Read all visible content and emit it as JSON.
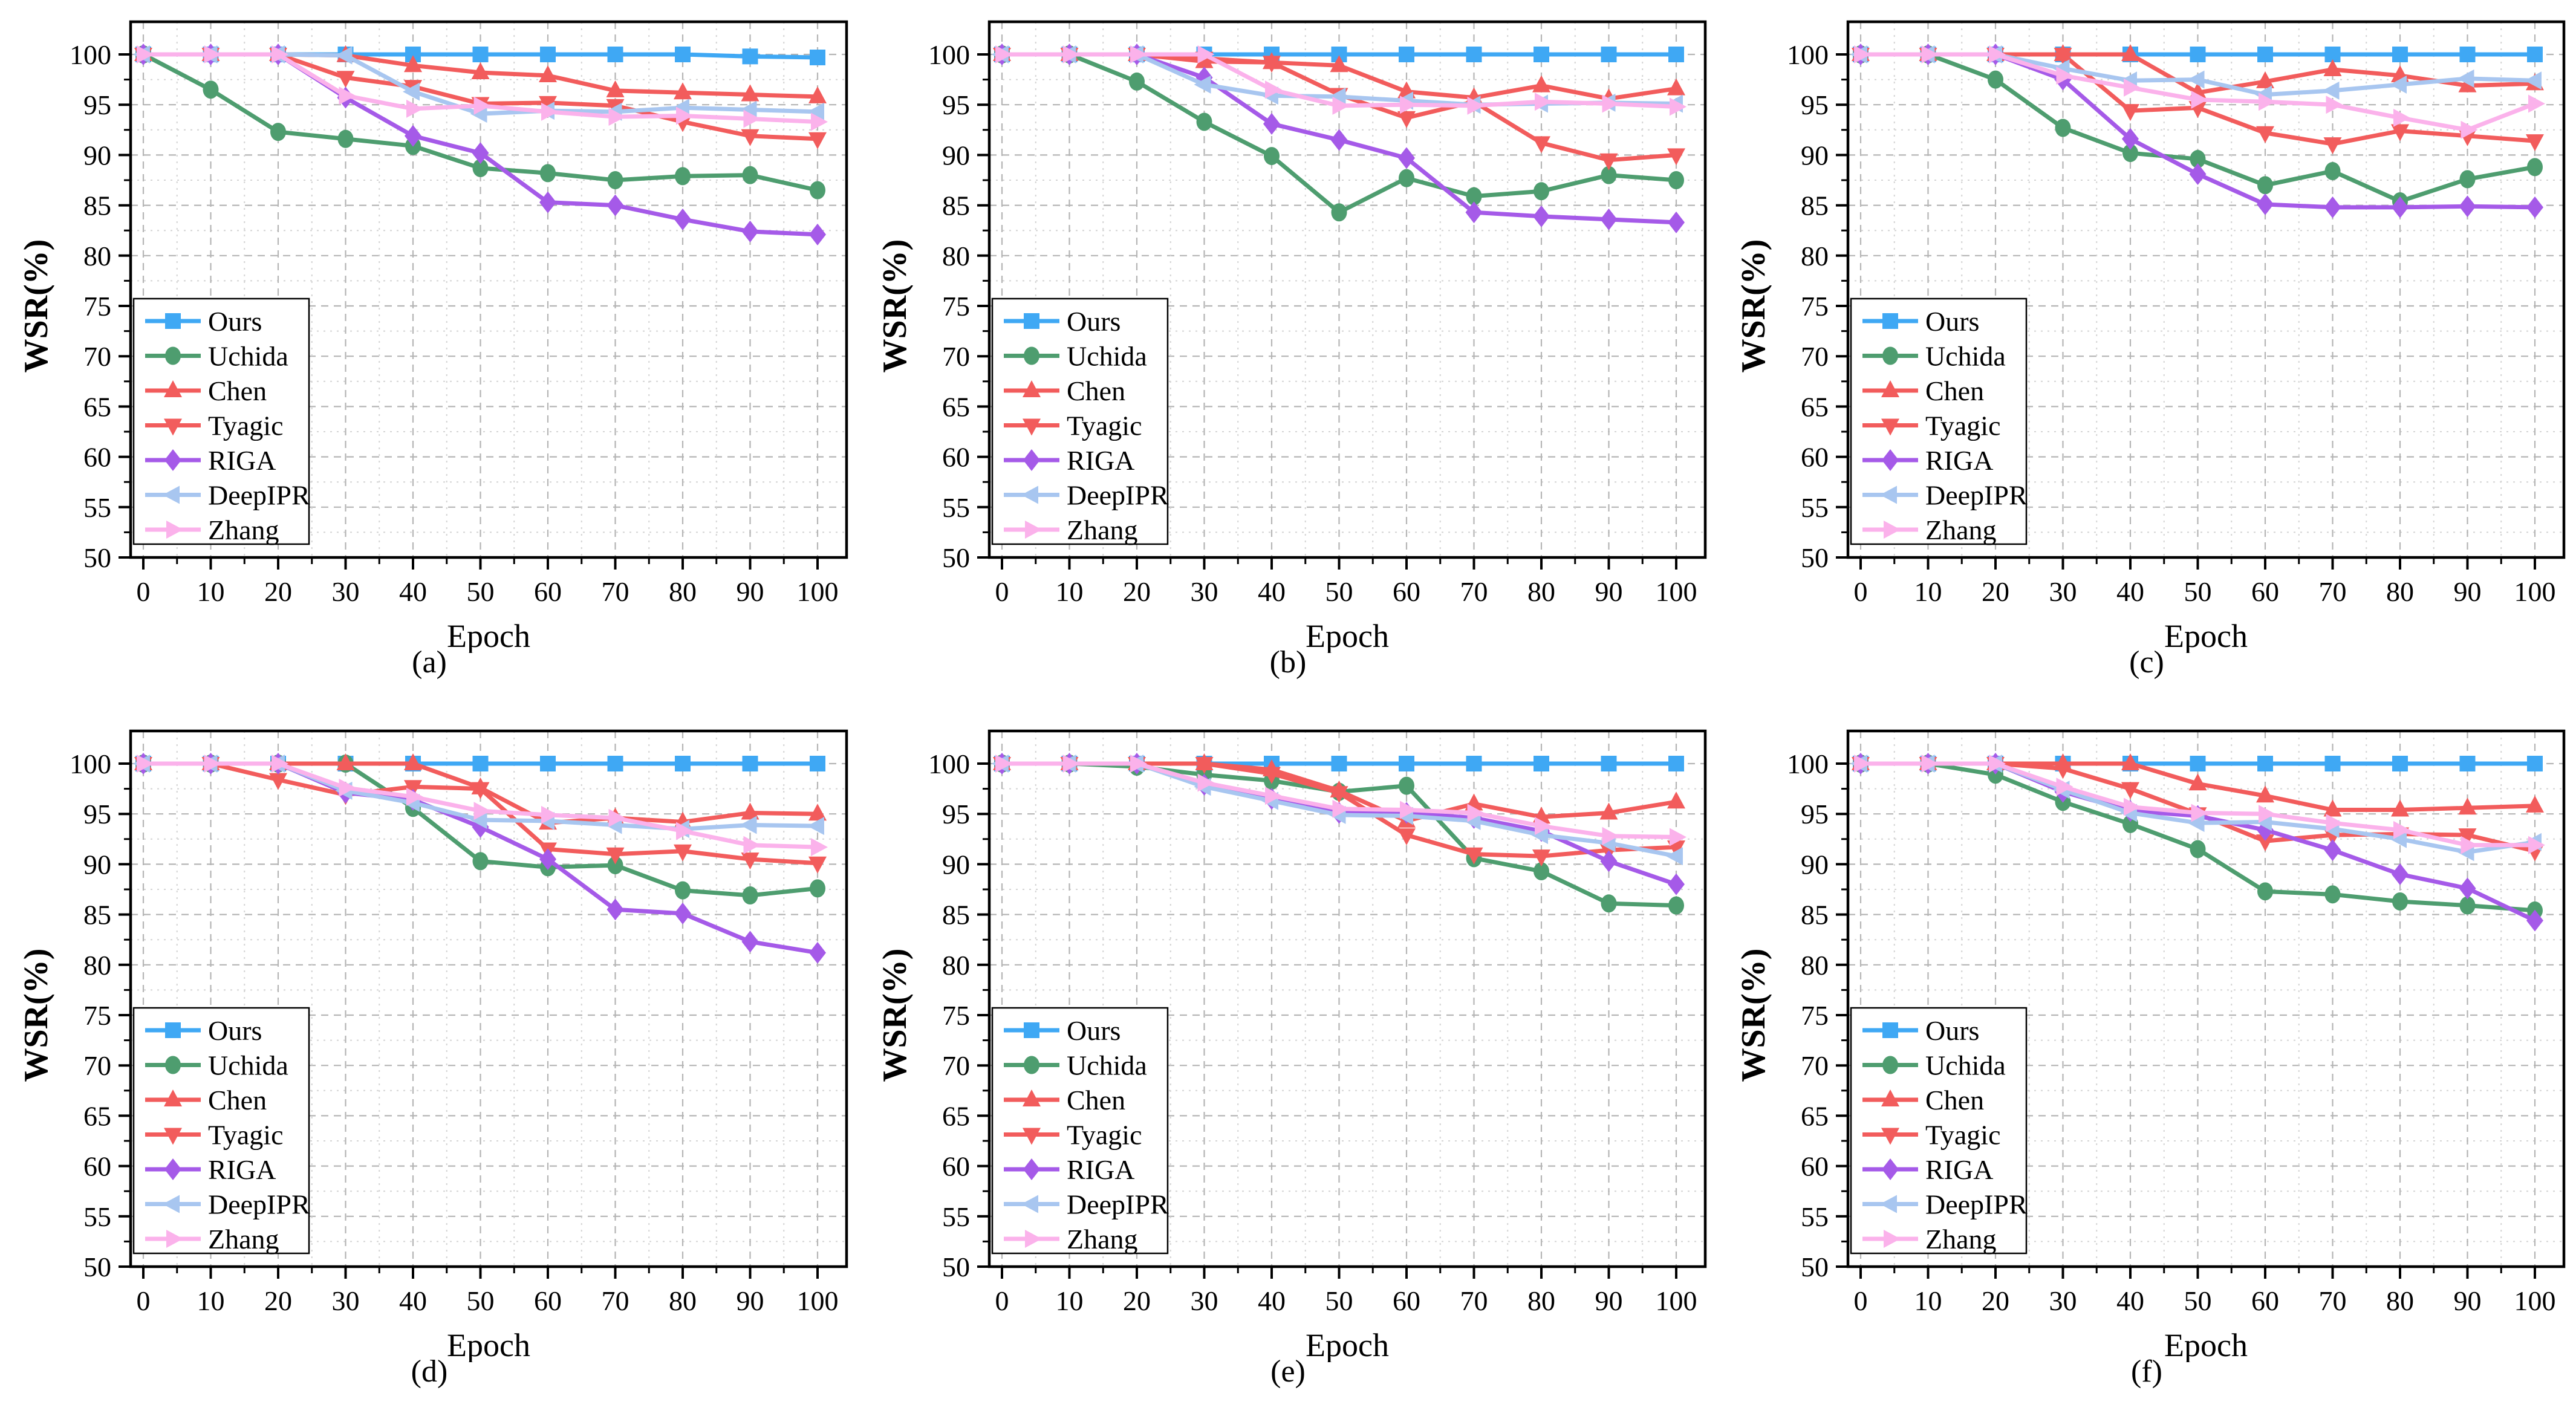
{
  "chart_data": {
    "type": "line",
    "x": [
      0,
      10,
      20,
      30,
      40,
      50,
      60,
      70,
      80,
      90,
      100
    ],
    "xlabel": "Epoch",
    "ylabel": "WSR(%)",
    "xlim": [
      0,
      100
    ],
    "ylim": [
      50,
      100
    ],
    "x_major_ticks": [
      0,
      10,
      20,
      30,
      40,
      50,
      60,
      70,
      80,
      90,
      100
    ],
    "y_major_ticks": [
      50,
      55,
      60,
      65,
      70,
      75,
      80,
      85,
      90,
      95,
      100
    ],
    "x_minor_step": 5,
    "y_minor_step": 2.5,
    "grid": "dashed-major-and-minor",
    "legend_position": "lower-left",
    "series_styles": [
      {
        "name": "Ours",
        "color": "#3FA8F4",
        "marker": "square"
      },
      {
        "name": "Uchida",
        "color": "#4E9D6F",
        "marker": "circle"
      },
      {
        "name": "Chen",
        "color": "#F25C5C",
        "marker": "triangle-up"
      },
      {
        "name": "Tyagic",
        "color": "#F25C5C",
        "marker": "triangle-down"
      },
      {
        "name": "RIGA",
        "color": "#A55AE8",
        "marker": "diamond"
      },
      {
        "name": "DeepIPR",
        "color": "#A8C6F0",
        "marker": "triangle-left"
      },
      {
        "name": "Zhang",
        "color": "#FBB2EB",
        "marker": "triangle-right"
      }
    ],
    "panels": [
      {
        "label": "(a)",
        "series": [
          {
            "name": "Ours",
            "values": [
              100,
              100,
              100,
              100,
              100,
              100,
              100,
              100,
              100,
              99.8,
              99.7
            ]
          },
          {
            "name": "Uchida",
            "values": [
              100,
              96.5,
              92.3,
              91.6,
              90.9,
              88.7,
              88.2,
              87.5,
              87.9,
              88.0,
              86.5
            ]
          },
          {
            "name": "Chen",
            "values": [
              100,
              100,
              100,
              99.9,
              98.9,
              98.2,
              97.9,
              96.4,
              96.2,
              96.0,
              95.8
            ]
          },
          {
            "name": "Tyagic",
            "values": [
              100,
              100,
              100,
              97.7,
              96.8,
              95.1,
              95.2,
              94.9,
              93.3,
              91.9,
              91.6
            ]
          },
          {
            "name": "RIGA",
            "values": [
              100,
              100,
              100,
              95.7,
              91.9,
              90.2,
              85.3,
              85.0,
              83.6,
              82.4,
              82.1
            ]
          },
          {
            "name": "DeepIPR",
            "values": [
              100,
              100,
              100,
              99.9,
              96.3,
              94.1,
              94.4,
              94.3,
              94.7,
              94.5,
              94.3
            ]
          },
          {
            "name": "Zhang",
            "values": [
              100,
              100,
              100,
              95.9,
              94.6,
              94.9,
              94.3,
              93.8,
              93.9,
              93.6,
              93.3
            ]
          }
        ]
      },
      {
        "label": "(b)",
        "series": [
          {
            "name": "Ours",
            "values": [
              100,
              100,
              100,
              100,
              100,
              100,
              100,
              100,
              100,
              100,
              100
            ]
          },
          {
            "name": "Uchida",
            "values": [
              100,
              100,
              97.3,
              93.3,
              89.9,
              84.3,
              87.7,
              85.9,
              86.4,
              88.0,
              87.5
            ]
          },
          {
            "name": "Chen",
            "values": [
              100,
              100,
              100,
              99.3,
              99.2,
              98.9,
              96.3,
              95.7,
              96.9,
              95.6,
              96.6
            ]
          },
          {
            "name": "Tyagic",
            "values": [
              100,
              100,
              100,
              99.6,
              99.2,
              96.0,
              93.7,
              95.3,
              91.2,
              89.5,
              90.0
            ]
          },
          {
            "name": "RIGA",
            "values": [
              100,
              100,
              100,
              97.7,
              93.1,
              91.5,
              89.7,
              84.3,
              83.9,
              83.6,
              83.3
            ]
          },
          {
            "name": "DeepIPR",
            "values": [
              100,
              100,
              100,
              97.0,
              95.9,
              95.8,
              95.4,
              95.0,
              95.1,
              95.2,
              95.1
            ]
          },
          {
            "name": "Zhang",
            "values": [
              100,
              100,
              100,
              100,
              96.5,
              94.9,
              95.0,
              94.9,
              95.3,
              95.1,
              94.8
            ]
          }
        ]
      },
      {
        "label": "(c)",
        "series": [
          {
            "name": "Ours",
            "values": [
              100,
              100,
              100,
              100,
              100,
              100,
              100,
              100,
              100,
              100,
              100
            ]
          },
          {
            "name": "Uchida",
            "values": [
              100,
              100,
              97.5,
              92.7,
              90.2,
              89.6,
              87.0,
              88.4,
              85.4,
              87.6,
              88.8
            ]
          },
          {
            "name": "Chen",
            "values": [
              100,
              100,
              100,
              100,
              100,
              96.2,
              97.3,
              98.5,
              97.9,
              96.9,
              97.1
            ]
          },
          {
            "name": "Tyagic",
            "values": [
              100,
              100,
              100,
              100,
              94.4,
              94.7,
              92.2,
              91.1,
              92.4,
              91.9,
              91.4
            ]
          },
          {
            "name": "RIGA",
            "values": [
              100,
              100,
              100,
              97.5,
              91.6,
              88.1,
              85.1,
              84.8,
              84.8,
              84.9,
              84.8
            ]
          },
          {
            "name": "DeepIPR",
            "values": [
              100,
              100,
              100,
              98.6,
              97.4,
              97.5,
              96.0,
              96.4,
              97.0,
              97.6,
              97.4
            ]
          },
          {
            "name": "Zhang",
            "values": [
              100,
              100,
              100,
              97.9,
              96.7,
              95.5,
              95.3,
              95.0,
              93.7,
              92.5,
              95.1
            ]
          }
        ]
      },
      {
        "label": "(d)",
        "series": [
          {
            "name": "Ours",
            "values": [
              100,
              100,
              100,
              100,
              100,
              100,
              100,
              100,
              100,
              100,
              100
            ]
          },
          {
            "name": "Uchida",
            "values": [
              100,
              100,
              100,
              100,
              95.6,
              90.3,
              89.7,
              89.9,
              87.4,
              86.9,
              87.6
            ]
          },
          {
            "name": "Chen",
            "values": [
              100,
              100,
              100,
              100,
              100,
              97.6,
              94.1,
              94.6,
              94.2,
              95.1,
              95.0
            ]
          },
          {
            "name": "Tyagic",
            "values": [
              100,
              100,
              98.4,
              96.9,
              97.7,
              97.5,
              91.5,
              91.0,
              91.3,
              90.5,
              90.1
            ]
          },
          {
            "name": "RIGA",
            "values": [
              100,
              100,
              100,
              97.1,
              96.4,
              93.7,
              90.5,
              85.5,
              85.1,
              82.3,
              81.2
            ]
          },
          {
            "name": "DeepIPR",
            "values": [
              100,
              100,
              100,
              97.3,
              96.1,
              94.4,
              94.3,
              93.9,
              93.5,
              93.9,
              93.8
            ]
          },
          {
            "name": "Zhang",
            "values": [
              100,
              100,
              100,
              97.6,
              96.7,
              95.3,
              94.9,
              94.6,
              93.3,
              91.9,
              91.7
            ]
          }
        ]
      },
      {
        "label": "(e)",
        "series": [
          {
            "name": "Ours",
            "values": [
              100,
              100,
              100,
              100,
              100,
              100,
              100,
              100,
              100,
              100,
              100
            ]
          },
          {
            "name": "Uchida",
            "values": [
              100,
              100,
              99.7,
              98.9,
              98.3,
              97.2,
              97.8,
              90.6,
              89.3,
              86.1,
              85.9
            ]
          },
          {
            "name": "Chen",
            "values": [
              100,
              100,
              100,
              100,
              99.4,
              97.3,
              94.3,
              96.0,
              94.7,
              95.1,
              96.2
            ]
          },
          {
            "name": "Tyagic",
            "values": [
              100,
              100,
              100,
              100,
              99.0,
              97.1,
              92.9,
              91.0,
              90.8,
              91.4,
              91.7
            ]
          },
          {
            "name": "RIGA",
            "values": [
              100,
              100,
              100,
              97.9,
              96.5,
              95.1,
              95.1,
              94.6,
              93.3,
              90.3,
              88.0
            ]
          },
          {
            "name": "DeepIPR",
            "values": [
              100,
              100,
              100,
              97.7,
              96.3,
              94.9,
              94.8,
              94.3,
              92.9,
              92.1,
              90.8
            ]
          },
          {
            "name": "Zhang",
            "values": [
              100,
              100,
              100,
              98.1,
              96.8,
              95.5,
              95.4,
              95.1,
              93.8,
              92.8,
              92.7
            ]
          }
        ]
      },
      {
        "label": "(f)",
        "series": [
          {
            "name": "Ours",
            "values": [
              100,
              100,
              100,
              100,
              100,
              100,
              100,
              100,
              100,
              100,
              100
            ]
          },
          {
            "name": "Uchida",
            "values": [
              100,
              100,
              98.9,
              96.2,
              94.0,
              91.5,
              87.3,
              87.0,
              86.3,
              85.9,
              85.4
            ]
          },
          {
            "name": "Chen",
            "values": [
              100,
              100,
              100,
              100,
              100,
              98.0,
              96.8,
              95.4,
              95.4,
              95.6,
              95.8
            ]
          },
          {
            "name": "Tyagic",
            "values": [
              100,
              100,
              100,
              99.5,
              97.5,
              95.0,
              92.3,
              92.9,
              93.0,
              92.9,
              91.3
            ]
          },
          {
            "name": "RIGA",
            "values": [
              100,
              100,
              100,
              97.2,
              95.3,
              94.8,
              93.4,
              91.4,
              89.0,
              87.6,
              84.4
            ]
          },
          {
            "name": "DeepIPR",
            "values": [
              100,
              100,
              100,
              97.4,
              95.1,
              94.1,
              94.2,
              93.5,
              92.5,
              91.2,
              92.2
            ]
          },
          {
            "name": "Zhang",
            "values": [
              100,
              100,
              100,
              97.7,
              95.7,
              95.1,
              95.0,
              94.1,
              93.4,
              91.9,
              91.9
            ]
          }
        ]
      }
    ]
  }
}
